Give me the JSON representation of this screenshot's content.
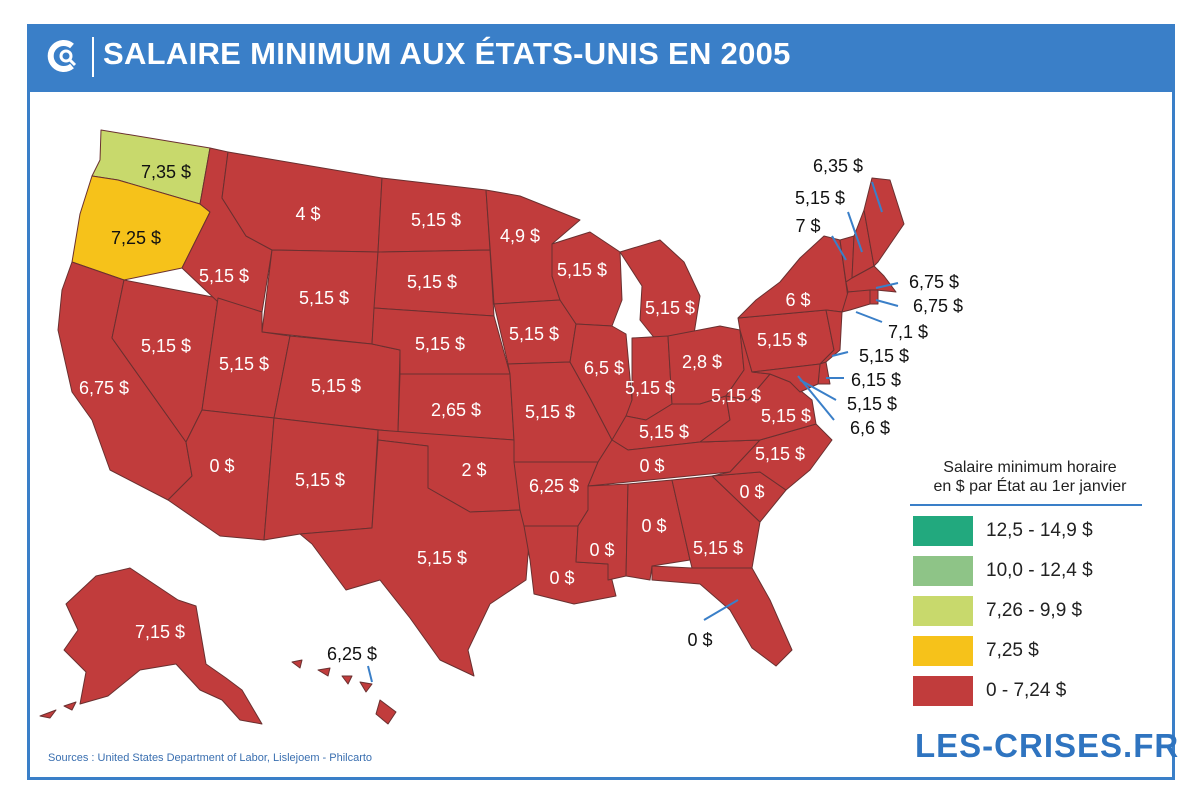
{
  "title": "SALAIRE MINIMUM AUX ÉTATS-UNIS EN 2005",
  "colors": {
    "frame": "#3a7fc8",
    "band_0_7_24": "#c13c3c",
    "band_7_25": "#f6c21a",
    "band_7_26_9_9": "#c8d96c",
    "band_10_12_4": "#8ec487",
    "band_12_5_14_9": "#22a97e",
    "leader_line": "#3a7fc8"
  },
  "legend": {
    "title_line1": "Salaire minimum horaire",
    "title_line2": "en $ par État au 1er janvier",
    "items": [
      {
        "label": "12,5 - 14,9 $",
        "color": "#22a97e"
      },
      {
        "label": "10,0 - 12,4 $",
        "color": "#8ec487"
      },
      {
        "label": "7,26 - 9,9 $",
        "color": "#c8d96c"
      },
      {
        "label": "7,25 $",
        "color": "#f6c21a"
      },
      {
        "label": "0 - 7,24 $",
        "color": "#c13c3c"
      }
    ]
  },
  "states": {
    "washington": "7,35 $",
    "oregon": "7,25 $",
    "california": "6,75 $",
    "nevada": "5,15 $",
    "idaho": "5,15 $",
    "montana": "4 $",
    "wyoming": "5,15 $",
    "utah": "5,15 $",
    "arizona": "0 $",
    "colorado": "5,15 $",
    "new_mexico": "5,15 $",
    "north_dakota": "5,15 $",
    "south_dakota": "5,15 $",
    "nebraska": "5,15 $",
    "kansas": "2,65 $",
    "oklahoma": "2 $",
    "texas": "5,15 $",
    "minnesota": "4,9 $",
    "iowa": "5,15 $",
    "missouri": "5,15 $",
    "arkansas": "6,25 $",
    "louisiana": "0 $",
    "wisconsin": "5,15 $",
    "illinois": "6,5 $",
    "michigan": "5,15 $",
    "indiana": "5,15 $",
    "ohio": "2,8 $",
    "kentucky": "5,15 $",
    "tennessee": "0 $",
    "mississippi": "0 $",
    "alabama": "0 $",
    "georgia": "5,15 $",
    "florida": "0 $",
    "south_carolina": "0 $",
    "north_carolina": "5,15 $",
    "virginia": "5,15 $",
    "west_virginia": "5,15 $",
    "pennsylvania": "5,15 $",
    "new_york": "6 $",
    "maine": "6,35 $",
    "new_hampshire": "5,15 $",
    "vermont": "7 $",
    "massachusetts": "6,75 $",
    "rhode_island": "6,75 $",
    "connecticut": "7,1 $",
    "new_jersey": "5,15 $",
    "delaware": "6,15 $",
    "maryland": "5,15 $",
    "dc": "6,6 $",
    "alaska": "7,15 $",
    "hawaii": "6,25 $"
  },
  "sources": "Sources : United States Department of Labor, Lislejoem - Philcarto",
  "brand": "LES-CRISES.FR"
}
